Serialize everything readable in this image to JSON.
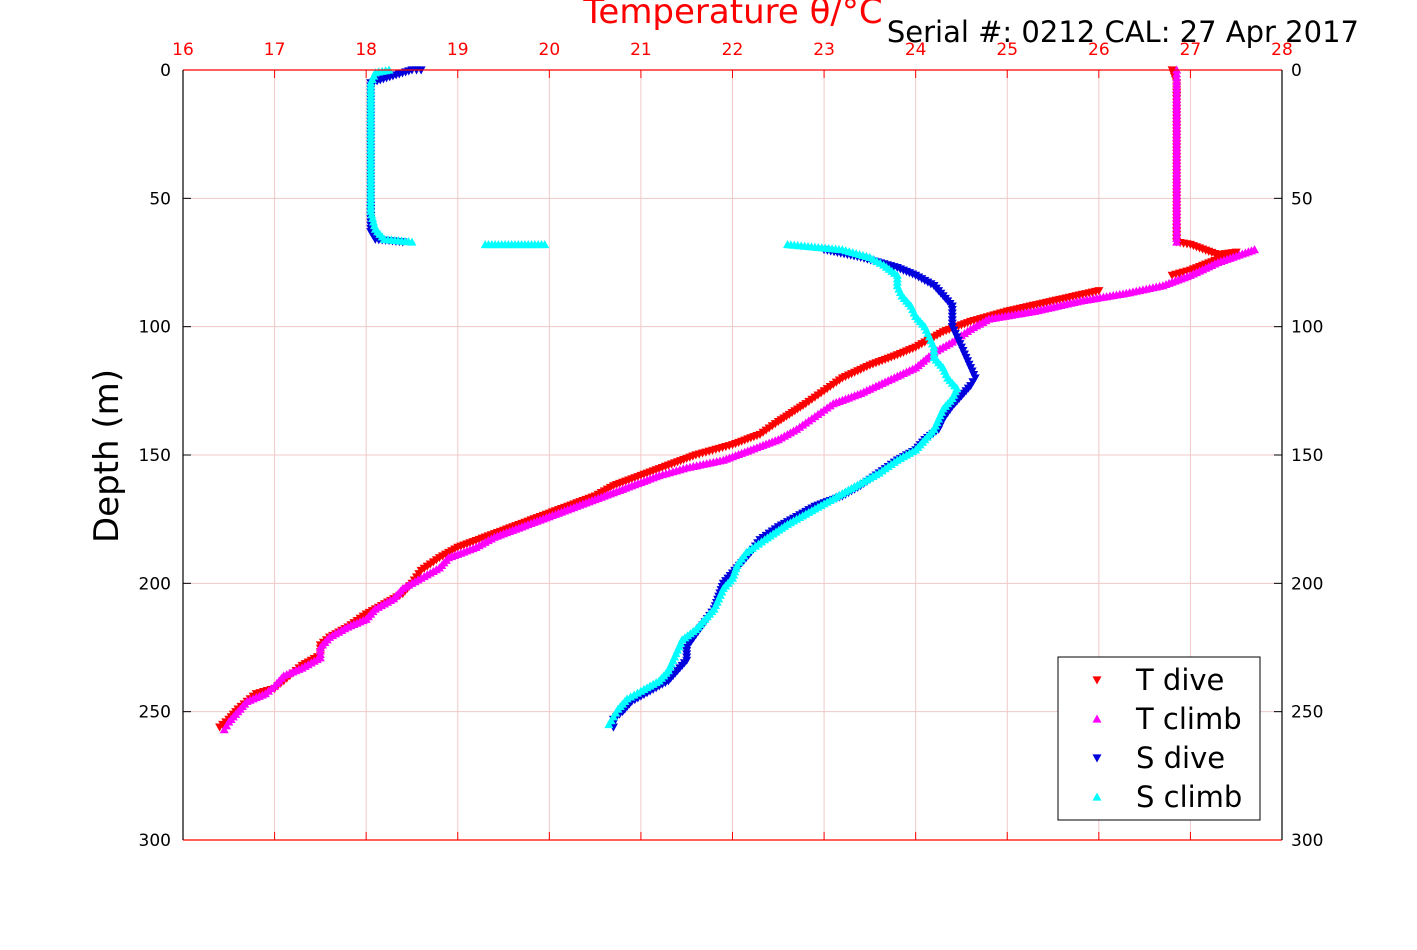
{
  "chart_data": {
    "type": "scatter",
    "title": "Serial #: 0212  CAL: 27 Apr 2017",
    "xlabel": "Temperature θ/°C",
    "ylabel": "Depth (m)",
    "xlim": [
      16,
      28
    ],
    "ylim": [
      0,
      300
    ],
    "y_reversed": true,
    "x_axis_position": "top",
    "x_ticks": [
      "16",
      "17",
      "18",
      "19",
      "20",
      "21",
      "22",
      "23",
      "24",
      "25",
      "26",
      "27",
      "28"
    ],
    "y_ticks_left": [
      "0",
      "50",
      "100",
      "150",
      "200",
      "250",
      "300"
    ],
    "y_ticks_right": [
      "0",
      "50",
      "100",
      "150",
      "200",
      "250",
      "300"
    ],
    "grid": true,
    "legend_position": "bottom-right",
    "colors": {
      "t_dive": "#ff0000",
      "t_climb": "#ff00ff",
      "s_dive": "#0000dd",
      "s_climb": "#00ffff",
      "axis_top": "#ff0000",
      "grid": "#f0c8c8"
    },
    "series": [
      {
        "name": "T dive",
        "marker": "triangle-down",
        "color": "#ff0000",
        "points": [
          [
            26.8,
            0
          ],
          [
            26.85,
            5
          ],
          [
            26.85,
            10
          ],
          [
            26.85,
            20
          ],
          [
            26.85,
            30
          ],
          [
            26.85,
            40
          ],
          [
            26.85,
            50
          ],
          [
            26.85,
            60
          ],
          [
            26.85,
            67
          ],
          [
            27.0,
            68
          ],
          [
            27.3,
            72
          ],
          [
            27.5,
            71
          ],
          [
            27.0,
            78
          ],
          [
            26.8,
            80
          ],
          [
            26.0,
            86
          ],
          [
            25.5,
            90
          ],
          [
            25.0,
            94
          ],
          [
            24.6,
            98
          ],
          [
            24.3,
            102
          ],
          [
            24.0,
            108
          ],
          [
            23.8,
            111
          ],
          [
            23.5,
            115
          ],
          [
            23.2,
            120
          ],
          [
            23.0,
            125
          ],
          [
            22.8,
            130
          ],
          [
            22.5,
            137
          ],
          [
            22.3,
            142
          ],
          [
            22.0,
            146
          ],
          [
            21.6,
            150
          ],
          [
            21.3,
            154
          ],
          [
            21.0,
            158
          ],
          [
            20.7,
            162
          ],
          [
            20.5,
            166
          ],
          [
            20.2,
            170
          ],
          [
            19.9,
            174
          ],
          [
            19.6,
            178
          ],
          [
            19.3,
            182
          ],
          [
            19.0,
            186
          ],
          [
            18.8,
            190
          ],
          [
            18.6,
            195
          ],
          [
            18.5,
            200
          ],
          [
            18.4,
            204
          ],
          [
            18.2,
            208
          ],
          [
            18.0,
            212
          ],
          [
            17.8,
            217
          ],
          [
            17.6,
            221
          ],
          [
            17.5,
            224
          ],
          [
            17.5,
            228
          ],
          [
            17.3,
            232
          ],
          [
            17.2,
            235
          ],
          [
            17.1,
            238
          ],
          [
            17.0,
            241
          ],
          [
            16.8,
            243
          ],
          [
            16.7,
            246
          ],
          [
            16.6,
            249
          ],
          [
            16.5,
            253
          ],
          [
            16.4,
            256
          ]
        ]
      },
      {
        "name": "T climb",
        "marker": "triangle-up",
        "color": "#ff00ff",
        "points": [
          [
            16.45,
            257
          ],
          [
            16.5,
            254
          ],
          [
            16.6,
            250
          ],
          [
            16.7,
            246
          ],
          [
            16.9,
            243
          ],
          [
            17.0,
            240
          ],
          [
            17.1,
            236
          ],
          [
            17.3,
            233
          ],
          [
            17.5,
            229
          ],
          [
            17.5,
            225
          ],
          [
            17.6,
            221
          ],
          [
            17.8,
            217
          ],
          [
            18.0,
            214
          ],
          [
            18.1,
            210
          ],
          [
            18.3,
            206
          ],
          [
            18.4,
            202
          ],
          [
            18.6,
            198
          ],
          [
            18.8,
            194
          ],
          [
            18.9,
            190
          ],
          [
            19.2,
            186
          ],
          [
            19.4,
            182
          ],
          [
            19.7,
            178
          ],
          [
            20.0,
            174
          ],
          [
            20.3,
            170
          ],
          [
            20.6,
            166
          ],
          [
            20.9,
            162
          ],
          [
            21.2,
            158
          ],
          [
            21.5,
            155
          ],
          [
            21.9,
            152
          ],
          [
            22.2,
            148
          ],
          [
            22.5,
            144
          ],
          [
            22.7,
            140
          ],
          [
            22.9,
            135
          ],
          [
            23.1,
            130
          ],
          [
            23.4,
            126
          ],
          [
            23.7,
            121
          ],
          [
            24.0,
            116
          ],
          [
            24.2,
            110
          ],
          [
            24.4,
            106
          ],
          [
            24.6,
            101
          ],
          [
            24.8,
            97
          ],
          [
            25.3,
            94
          ],
          [
            25.8,
            90
          ],
          [
            26.3,
            87
          ],
          [
            26.7,
            84
          ],
          [
            27.0,
            80
          ],
          [
            27.3,
            75
          ],
          [
            27.7,
            70
          ],
          [
            26.85,
            67
          ],
          [
            26.85,
            60
          ],
          [
            26.85,
            50
          ],
          [
            26.85,
            40
          ],
          [
            26.85,
            30
          ],
          [
            26.85,
            20
          ],
          [
            26.85,
            10
          ],
          [
            26.85,
            3
          ],
          [
            26.85,
            0
          ]
        ]
      },
      {
        "name": "S dive",
        "marker": "triangle-down",
        "color": "#0000dd",
        "points": [
          [
            18.6,
            0
          ],
          [
            18.5,
            0
          ],
          [
            18.05,
            5
          ],
          [
            18.05,
            20
          ],
          [
            18.05,
            35
          ],
          [
            18.05,
            50
          ],
          [
            18.05,
            58
          ],
          [
            18.05,
            63
          ],
          [
            18.1,
            66
          ],
          [
            18.4,
            67
          ],
          [
            23.0,
            70
          ],
          [
            23.4,
            73
          ],
          [
            23.8,
            77
          ],
          [
            24.0,
            80
          ],
          [
            24.2,
            84
          ],
          [
            24.3,
            88
          ],
          [
            24.4,
            92
          ],
          [
            24.4,
            96
          ],
          [
            24.4,
            100
          ],
          [
            24.45,
            104
          ],
          [
            24.5,
            108
          ],
          [
            24.55,
            112
          ],
          [
            24.6,
            116
          ],
          [
            24.65,
            120
          ],
          [
            24.6,
            123
          ],
          [
            24.5,
            127
          ],
          [
            24.4,
            131
          ],
          [
            24.3,
            136
          ],
          [
            24.25,
            140
          ],
          [
            24.1,
            144
          ],
          [
            24.0,
            148
          ],
          [
            23.8,
            152
          ],
          [
            23.6,
            157
          ],
          [
            23.4,
            162
          ],
          [
            23.2,
            166
          ],
          [
            22.9,
            170
          ],
          [
            22.7,
            174
          ],
          [
            22.5,
            178
          ],
          [
            22.3,
            183
          ],
          [
            22.2,
            188
          ],
          [
            22.1,
            192
          ],
          [
            22.0,
            196
          ],
          [
            21.9,
            200
          ],
          [
            21.85,
            205
          ],
          [
            21.8,
            210
          ],
          [
            21.7,
            215
          ],
          [
            21.6,
            220
          ],
          [
            21.5,
            225
          ],
          [
            21.5,
            230
          ],
          [
            21.4,
            234
          ],
          [
            21.3,
            238
          ],
          [
            21.1,
            242
          ],
          [
            20.9,
            246
          ],
          [
            20.8,
            250
          ],
          [
            20.7,
            253
          ],
          [
            20.7,
            256
          ]
        ]
      },
      {
        "name": "S climb",
        "marker": "triangle-up",
        "color": "#00ffff",
        "points": [
          [
            20.65,
            255
          ],
          [
            20.7,
            252
          ],
          [
            20.75,
            249
          ],
          [
            20.85,
            245
          ],
          [
            21.0,
            242
          ],
          [
            21.2,
            238
          ],
          [
            21.3,
            234
          ],
          [
            21.35,
            230
          ],
          [
            21.4,
            226
          ],
          [
            21.45,
            222
          ],
          [
            21.6,
            218
          ],
          [
            21.7,
            214
          ],
          [
            21.8,
            210
          ],
          [
            21.85,
            206
          ],
          [
            21.9,
            202
          ],
          [
            22.0,
            198
          ],
          [
            22.05,
            193
          ],
          [
            22.15,
            188
          ],
          [
            22.35,
            183
          ],
          [
            22.6,
            177
          ],
          [
            22.8,
            173
          ],
          [
            23.0,
            169
          ],
          [
            23.2,
            165
          ],
          [
            23.4,
            161
          ],
          [
            23.6,
            157
          ],
          [
            23.8,
            152
          ],
          [
            24.0,
            148
          ],
          [
            24.1,
            144
          ],
          [
            24.2,
            140
          ],
          [
            24.25,
            136
          ],
          [
            24.3,
            132
          ],
          [
            24.4,
            128
          ],
          [
            24.45,
            124
          ],
          [
            24.35,
            120
          ],
          [
            24.3,
            116
          ],
          [
            24.2,
            112
          ],
          [
            24.2,
            108
          ],
          [
            24.15,
            104
          ],
          [
            24.1,
            100
          ],
          [
            24.0,
            96
          ],
          [
            23.95,
            92
          ],
          [
            23.85,
            88
          ],
          [
            23.8,
            84
          ],
          [
            23.8,
            80
          ],
          [
            23.65,
            76
          ],
          [
            23.5,
            73
          ],
          [
            23.2,
            70
          ],
          [
            22.9,
            69
          ],
          [
            22.6,
            68
          ],
          [
            19.95,
            68
          ],
          [
            19.3,
            68
          ],
          [
            18.5,
            67
          ],
          [
            18.2,
            66
          ],
          [
            18.1,
            62
          ],
          [
            18.05,
            55
          ],
          [
            18.05,
            45
          ],
          [
            18.05,
            35
          ],
          [
            18.05,
            25
          ],
          [
            18.05,
            15
          ],
          [
            18.05,
            5
          ],
          [
            18.1,
            1
          ],
          [
            18.25,
            0
          ]
        ]
      }
    ]
  }
}
